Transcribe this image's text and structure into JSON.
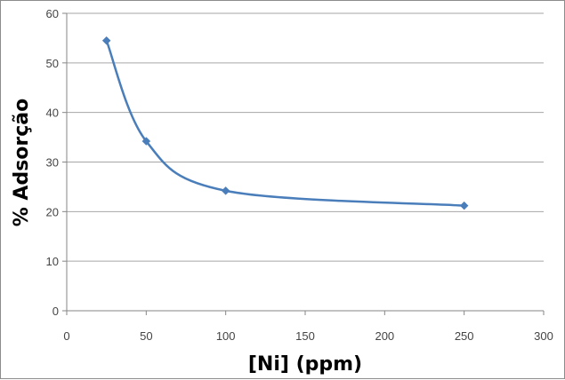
{
  "chart_data": {
    "type": "scatter",
    "title": "",
    "xlabel": "[Ni] (ppm)",
    "ylabel": "% Adsorção",
    "xlim": [
      0,
      300
    ],
    "ylim": [
      0,
      60
    ],
    "xticks": [
      0,
      50,
      100,
      150,
      200,
      250,
      300
    ],
    "yticks": [
      0,
      10,
      20,
      30,
      40,
      50,
      60
    ],
    "grid": "horizontal",
    "legend": "none",
    "line_style": "smooth",
    "marker": "diamond",
    "colors": {
      "series": "#4a7ebb",
      "grid": "#a6a6a6",
      "axis": "#868686"
    },
    "series": [
      {
        "x": [
          25,
          50,
          100,
          250
        ],
        "y": [
          54.5,
          34.2,
          24.2,
          21.2
        ]
      }
    ]
  }
}
